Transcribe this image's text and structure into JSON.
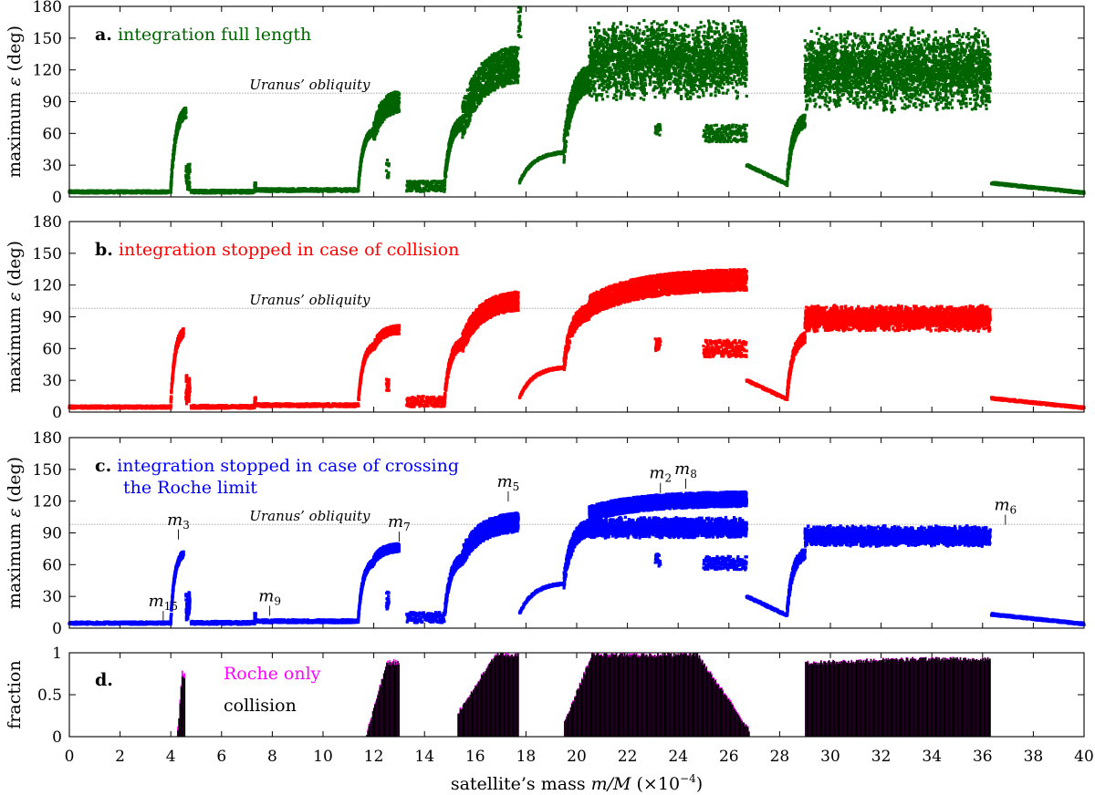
{
  "chart_data": [
    {
      "id": "a",
      "type": "scatter",
      "panel_label": "a.",
      "title": "integration full length",
      "color": "#006400",
      "ylabel_main": "maximum ",
      "ylabel_sym": "ε",
      "ylabel_unit": " (deg)",
      "ylim": [
        0,
        180
      ],
      "yticks": [
        0,
        30,
        60,
        90,
        120,
        150,
        180
      ],
      "reference_line": {
        "value": 98,
        "label": "Uranus’ obliquity",
        "label_x": 7.1
      },
      "segments": [
        [
          0.0,
          4.0,
          3.5,
          6.0,
          0,
          0
        ],
        [
          4.0,
          4.6,
          8,
          80,
          10,
          1
        ],
        [
          4.6,
          4.75,
          10,
          32,
          8,
          0
        ],
        [
          4.8,
          7.3,
          3.5,
          6.5,
          0,
          0
        ],
        [
          7.3,
          7.35,
          8,
          14,
          0,
          0
        ],
        [
          7.35,
          11.4,
          5,
          8,
          0,
          0
        ],
        [
          11.4,
          12.0,
          12,
          62,
          6,
          1
        ],
        [
          12.0,
          13.0,
          60,
          90,
          20,
          1
        ],
        [
          12.5,
          12.6,
          18,
          35,
          0,
          0
        ],
        [
          13.3,
          14.8,
          5,
          15,
          0,
          0
        ],
        [
          14.8,
          15.5,
          14,
          70,
          12,
          1
        ],
        [
          15.5,
          17.7,
          70,
          125,
          35,
          1
        ],
        [
          17.7,
          17.8,
          150,
          180,
          0,
          0
        ],
        [
          17.75,
          19.5,
          14,
          42,
          0,
          1
        ],
        [
          19.5,
          20.5,
          45,
          112,
          25,
          1
        ],
        [
          20.5,
          26.7,
          110,
          148,
          40,
          0
        ],
        [
          25.0,
          26.7,
          52,
          68,
          0,
          0
        ],
        [
          23.1,
          23.3,
          58,
          70,
          0,
          0
        ],
        [
          26.7,
          28.3,
          12,
          30,
          0,
          -1
        ],
        [
          28.3,
          29.0,
          16,
          72,
          12,
          1
        ],
        [
          29.0,
          36.3,
          100,
          140,
          40,
          0
        ],
        [
          36.35,
          40.0,
          4,
          13,
          0,
          -1
        ]
      ]
    },
    {
      "id": "b",
      "type": "scatter",
      "panel_label": "b.",
      "title": "integration stopped in case of collision",
      "color": "#ff0000",
      "ylabel_main": "maximum ",
      "ylabel_sym": "ε",
      "ylabel_unit": " (deg)",
      "ylim": [
        0,
        180
      ],
      "yticks": [
        0,
        30,
        60,
        90,
        120,
        150,
        180
      ],
      "reference_line": {
        "value": 98,
        "label": "Uranus’ obliquity",
        "label_x": 7.1
      },
      "segments": [
        [
          0.0,
          4.0,
          3.5,
          6.0,
          0,
          0
        ],
        [
          4.0,
          4.5,
          8,
          75,
          8,
          1
        ],
        [
          4.6,
          4.75,
          10,
          32,
          8,
          0
        ],
        [
          4.8,
          7.3,
          3.5,
          6.5,
          0,
          0
        ],
        [
          7.3,
          7.35,
          8,
          14,
          0,
          0
        ],
        [
          7.35,
          11.4,
          5,
          8,
          0,
          0
        ],
        [
          11.4,
          12.0,
          12,
          62,
          6,
          1
        ],
        [
          12.0,
          13.0,
          62,
          78,
          8,
          1
        ],
        [
          12.5,
          12.6,
          18,
          35,
          0,
          0
        ],
        [
          13.3,
          14.8,
          5,
          15,
          0,
          0
        ],
        [
          14.8,
          15.5,
          14,
          65,
          10,
          1
        ],
        [
          15.5,
          17.7,
          65,
          105,
          18,
          1
        ],
        [
          17.75,
          19.5,
          14,
          42,
          0,
          1
        ],
        [
          19.5,
          20.5,
          45,
          95,
          15,
          1
        ],
        [
          20.5,
          26.7,
          100,
          125,
          20,
          1
        ],
        [
          25.0,
          26.7,
          52,
          68,
          0,
          0
        ],
        [
          23.1,
          23.3,
          58,
          70,
          0,
          0
        ],
        [
          26.7,
          28.3,
          12,
          30,
          0,
          -1
        ],
        [
          28.3,
          29.0,
          16,
          70,
          10,
          1
        ],
        [
          29.0,
          36.3,
          82,
          95,
          12,
          0
        ],
        [
          36.35,
          40.0,
          4,
          13,
          0,
          -1
        ]
      ]
    },
    {
      "id": "c",
      "type": "scatter",
      "panel_label": "c.",
      "title": "integration stopped in case of crossing",
      "title_line2": "the Roche limit",
      "color": "#0000ff",
      "ylabel_main": "maximum ",
      "ylabel_sym": "ε",
      "ylabel_unit": " (deg)",
      "ylim": [
        0,
        180
      ],
      "yticks": [
        0,
        30,
        60,
        90,
        120,
        150,
        180
      ],
      "reference_line": {
        "value": 98,
        "label": "Uranus’ obliquity",
        "label_x": 7.1
      },
      "segments": [
        [
          0.0,
          4.0,
          3.5,
          6.0,
          0,
          0
        ],
        [
          4.0,
          4.5,
          8,
          70,
          6,
          1
        ],
        [
          4.6,
          4.75,
          10,
          32,
          8,
          0
        ],
        [
          4.8,
          7.3,
          3.5,
          6.5,
          0,
          0
        ],
        [
          7.3,
          7.35,
          8,
          14,
          0,
          0
        ],
        [
          7.35,
          11.4,
          5,
          8,
          0,
          0
        ],
        [
          11.4,
          12.0,
          12,
          62,
          6,
          1
        ],
        [
          12.0,
          13.0,
          64,
          76,
          8,
          1
        ],
        [
          12.5,
          12.6,
          18,
          35,
          0,
          0
        ],
        [
          13.3,
          14.8,
          5,
          15,
          0,
          0
        ],
        [
          14.8,
          15.5,
          14,
          65,
          10,
          1
        ],
        [
          15.5,
          17.7,
          68,
          100,
          18,
          1
        ],
        [
          17.75,
          19.5,
          14,
          42,
          0,
          1
        ],
        [
          19.5,
          20.5,
          45,
          95,
          15,
          1
        ],
        [
          20.5,
          26.7,
          108,
          122,
          14,
          1
        ],
        [
          20.5,
          26.7,
          90,
          100,
          10,
          0
        ],
        [
          25.0,
          26.7,
          55,
          68,
          0,
          0
        ],
        [
          23.1,
          23.3,
          58,
          70,
          0,
          0
        ],
        [
          26.7,
          28.3,
          12,
          30,
          0,
          -1
        ],
        [
          28.3,
          29.0,
          16,
          70,
          10,
          1
        ],
        [
          29.0,
          36.3,
          82,
          92,
          10,
          0
        ],
        [
          36.35,
          40.0,
          4,
          13,
          0,
          -1
        ]
      ],
      "annotations": [
        {
          "base": "m",
          "sub": "15",
          "x": 3.7,
          "y": 5
        },
        {
          "base": "m",
          "sub": "3",
          "x": 4.3,
          "y": 82
        },
        {
          "base": "m",
          "sub": "9",
          "x": 7.9,
          "y": 10
        },
        {
          "base": "m",
          "sub": "7",
          "x": 13.0,
          "y": 80
        },
        {
          "base": "m",
          "sub": "5",
          "x": 17.3,
          "y": 118
        },
        {
          "base": "m",
          "sub": "2",
          "x": 23.3,
          "y": 126
        },
        {
          "base": "m",
          "sub": "8",
          "x": 24.3,
          "y": 130
        },
        {
          "base": "m",
          "sub": "6",
          "x": 36.9,
          "y": 96
        }
      ]
    },
    {
      "id": "d",
      "type": "bar",
      "panel_label": "d.",
      "ylabel": "fraction",
      "ylim": [
        0,
        1
      ],
      "yticks": [
        0,
        0.5,
        1
      ],
      "ytick_labels": [
        "0",
        "0.5",
        "1"
      ],
      "legend": [
        {
          "label": "Roche only",
          "color": "#ff00ff"
        },
        {
          "label": "collision",
          "color": "#000000"
        }
      ],
      "regions": [
        [
          4.25,
          4.55,
          0.1,
          0.72,
          0.1
        ],
        [
          11.7,
          13.0,
          0.05,
          0.9,
          0.03
        ],
        [
          15.3,
          17.7,
          0.3,
          1.0,
          0.02
        ],
        [
          19.5,
          26.8,
          0.2,
          1.0,
          0.02
        ],
        [
          29.0,
          36.3,
          0.9,
          0.95,
          0.01
        ]
      ]
    }
  ],
  "x_axis": {
    "label_main": "satellite’s mass ",
    "label_var": "m/M",
    "label_unit": "(×10",
    "label_exp": "−4",
    "label_close": ")",
    "range": [
      0,
      40
    ],
    "ticks": [
      0,
      2,
      4,
      6,
      8,
      10,
      12,
      14,
      16,
      18,
      20,
      22,
      24,
      26,
      28,
      30,
      32,
      34,
      36,
      38,
      40
    ],
    "tick_labels": [
      "0",
      "2",
      "4",
      "6",
      "8",
      "10",
      "12",
      "14",
      "16",
      "18",
      "20",
      "22",
      "24",
      "26",
      "28",
      "30",
      "32",
      "34",
      "36",
      "38",
      "40"
    ]
  }
}
